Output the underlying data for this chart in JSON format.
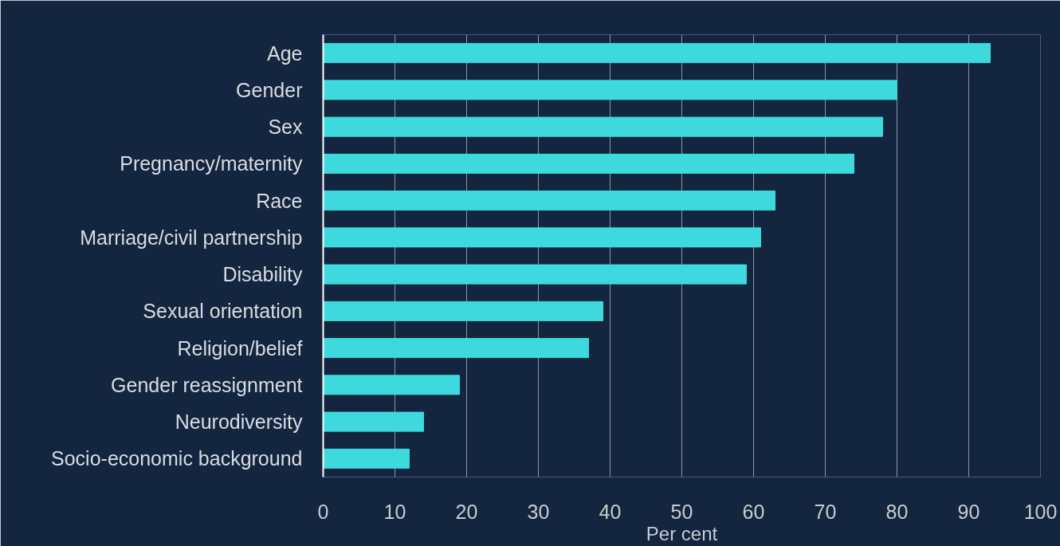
{
  "chart_data": {
    "type": "bar",
    "orientation": "horizontal",
    "xlabel": "Per cent",
    "categories": [
      "Age",
      "Gender",
      "Sex",
      "Pregnancy/maternity",
      "Race",
      "Marriage/civil partnership",
      "Disability",
      "Sexual orientation",
      "Religion/belief",
      "Gender reassignment",
      "Neurodiversity",
      "Socio-economic background"
    ],
    "values": [
      93,
      80,
      78,
      74,
      63,
      61,
      59,
      39,
      37,
      19,
      14,
      12
    ],
    "color": "#3dd9dc",
    "xlim": [
      0,
      100
    ],
    "xticks": [
      0,
      10,
      20,
      30,
      40,
      50,
      60,
      70,
      80,
      90,
      100
    ],
    "grid": "x"
  }
}
